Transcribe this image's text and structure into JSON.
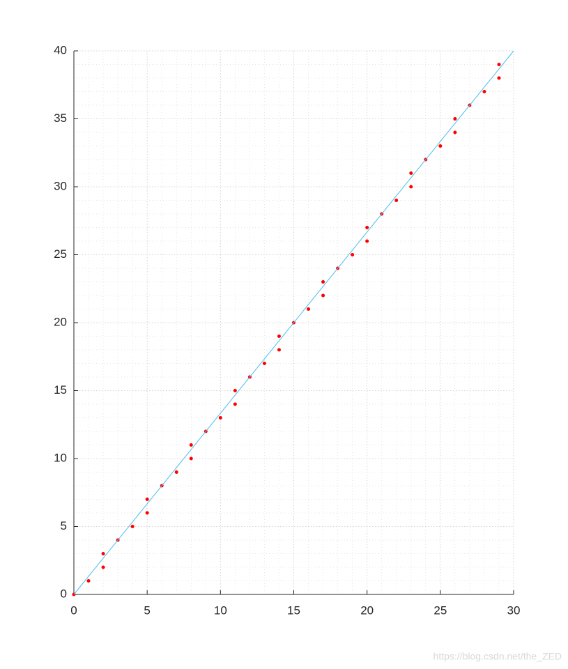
{
  "chart_data": {
    "type": "scatter",
    "xlim": [
      0,
      30
    ],
    "ylim": [
      0,
      40
    ],
    "xticks": [
      0,
      5,
      10,
      15,
      20,
      25,
      30
    ],
    "yticks": [
      0,
      5,
      10,
      15,
      20,
      25,
      30,
      35,
      40
    ],
    "grid": true,
    "minor_grid": true,
    "series": [
      {
        "type": "scatter",
        "color": "#ff0000",
        "x": [
          0,
          1,
          2,
          2,
          3,
          4,
          5,
          5,
          6,
          7,
          8,
          8,
          9,
          10,
          11,
          11,
          12,
          13,
          14,
          14,
          15,
          16,
          17,
          17,
          18,
          19,
          20,
          20,
          21,
          22,
          23,
          23,
          24,
          25,
          26,
          26,
          27,
          28,
          29,
          29
        ],
        "values": [
          0,
          1,
          2,
          3,
          4,
          5,
          6,
          7,
          8,
          9,
          10,
          11,
          12,
          13,
          14,
          15,
          16,
          17,
          18,
          19,
          20,
          21,
          22,
          23,
          24,
          25,
          26,
          27,
          28,
          29,
          30,
          31,
          32,
          33,
          34,
          35,
          36,
          37,
          38,
          39
        ]
      },
      {
        "type": "line",
        "color": "#4dbeee",
        "x": [
          0,
          30
        ],
        "values": [
          0,
          40
        ]
      }
    ]
  },
  "watermark": "https://blog.csdn.net/the_ZED"
}
